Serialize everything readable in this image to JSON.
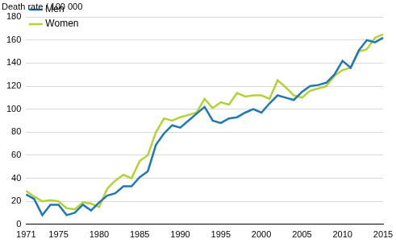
{
  "chart_data": {
    "type": "line",
    "ylabel": "Death rate / 100 000",
    "categories": [
      "1971",
      null,
      null,
      null,
      "1975",
      null,
      null,
      null,
      null,
      "1980",
      null,
      null,
      null,
      null,
      "1985",
      null,
      null,
      null,
      null,
      "1990",
      null,
      null,
      null,
      null,
      "1995",
      null,
      null,
      null,
      null,
      "2000",
      null,
      null,
      null,
      null,
      "2005",
      null,
      null,
      null,
      null,
      "2010",
      null,
      null,
      null,
      null,
      "2015"
    ],
    "series": [
      {
        "name": "Men",
        "color": "#1f78b4",
        "values": [
          26,
          22,
          8,
          17,
          17,
          8,
          10,
          17,
          12,
          19,
          25,
          27,
          33,
          33,
          41,
          46,
          69,
          79,
          86,
          84,
          90,
          96,
          102,
          90,
          88,
          92,
          93,
          97,
          100,
          97,
          105,
          112,
          110,
          108,
          115,
          120,
          121,
          123,
          130,
          142,
          136,
          151,
          160,
          158,
          162
        ]
      },
      {
        "name": "Women",
        "color": "#b2d235",
        "values": [
          29,
          24,
          20,
          21,
          20,
          14,
          13,
          19,
          18,
          15,
          31,
          38,
          43,
          40,
          55,
          60,
          80,
          92,
          90,
          93,
          95,
          97,
          109,
          101,
          106,
          104,
          114,
          111,
          112,
          112,
          109,
          125,
          119,
          112,
          110,
          116,
          118,
          120,
          129,
          134,
          136,
          150,
          152,
          162,
          165
        ]
      }
    ],
    "ylim": [
      0,
      180
    ],
    "yticks": [
      0,
      20,
      40,
      60,
      80,
      100,
      120,
      140,
      160,
      180
    ],
    "grid": true,
    "legend": "upper left"
  }
}
